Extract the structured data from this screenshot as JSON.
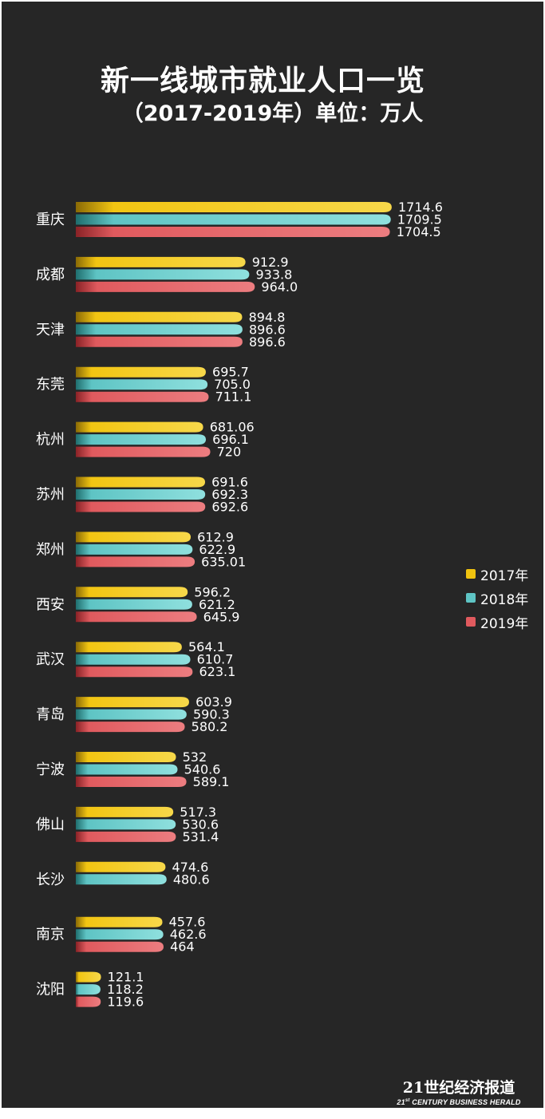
{
  "chart_data": {
    "type": "bar",
    "orientation": "horizontal",
    "title": "新一线城市就业人口一览",
    "subtitle": "（2017-2019年）单位：万人",
    "categories": [
      "重庆",
      "成都",
      "天津",
      "东莞",
      "杭州",
      "苏州",
      "郑州",
      "西安",
      "武汉",
      "青岛",
      "宁波",
      "佛山",
      "长沙",
      "南京",
      "沈阳"
    ],
    "series": [
      {
        "name": "2017年",
        "color": "#f0c30f",
        "values": [
          1714.6,
          912.9,
          894.8,
          695.7,
          681.06,
          691.6,
          612.9,
          596.2,
          564.1,
          603.9,
          532,
          517.3,
          474.6,
          457.6,
          121.1
        ],
        "labels": [
          "1714.6",
          "912.9",
          "894.8",
          "695.7",
          "681.06",
          "691.6",
          "612.9",
          "596.2",
          "564.1",
          "603.9",
          "532",
          "517.3",
          "474.6",
          "457.6",
          "121.1"
        ]
      },
      {
        "name": "2018年",
        "color": "#5ec4c4",
        "values": [
          1709.5,
          933.8,
          896.6,
          705.0,
          696.1,
          692.3,
          622.9,
          621.2,
          610.7,
          590.3,
          540.6,
          530.6,
          480.6,
          462.6,
          118.2
        ],
        "labels": [
          "1709.5",
          "933.8",
          "896.6",
          "705.0",
          "696.1",
          "692.3",
          "622.9",
          "621.2",
          "610.7",
          "590.3",
          "540.6",
          "530.6",
          "480.6",
          "462.6",
          "118.2"
        ]
      },
      {
        "name": "2019年",
        "color": "#e05a5e",
        "values": [
          1704.5,
          964.0,
          896.6,
          711.1,
          720,
          692.6,
          635.01,
          645.9,
          623.1,
          580.2,
          589.1,
          531.4,
          null,
          464,
          119.6
        ],
        "labels": [
          "1704.5",
          "964.0",
          "896.6",
          "711.1",
          "720",
          "692.6",
          "635.01",
          "645.9",
          "623.1",
          "580.2",
          "589.1",
          "531.4",
          "",
          "464",
          "119.6"
        ]
      }
    ],
    "legend": "right"
  },
  "brand": {
    "name_cn": "21世纪经济报道",
    "name_en_prefix": "21",
    "name_en_sup": "st",
    "name_en_rest": " CENTURY BUSINESS HERALD"
  }
}
